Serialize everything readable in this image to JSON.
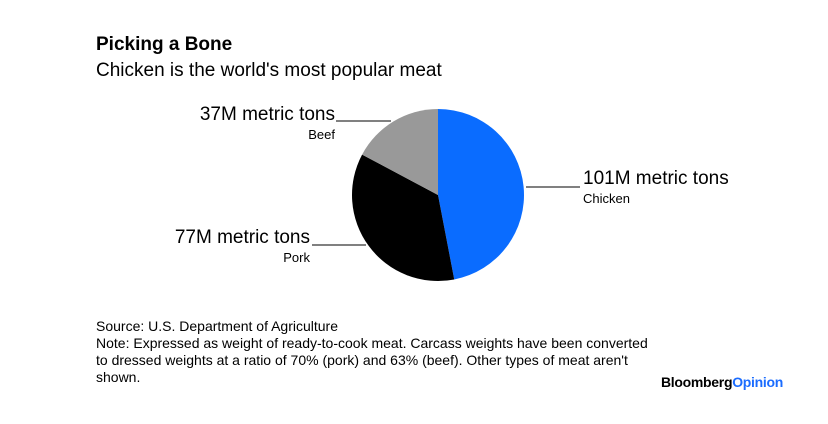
{
  "title": "Picking a Bone",
  "subtitle": "Chicken is the world's most popular meat",
  "chart_data": {
    "type": "pie",
    "title": "Picking a Bone",
    "subtitle": "Chicken is the world's most popular meat",
    "slices": [
      {
        "name": "Chicken",
        "value": 101,
        "value_label": "101M metric tons",
        "color": "#0a6cff"
      },
      {
        "name": "Pork",
        "value": 77,
        "value_label": "77M metric tons",
        "color": "#000000"
      },
      {
        "name": "Beef",
        "value": 37,
        "value_label": "37M metric tons",
        "color": "#999999"
      }
    ],
    "start": "12 o'clock",
    "direction": "clockwise"
  },
  "footer": {
    "source": "Source: U.S. Department of Agriculture",
    "note": "Note: Expressed as weight of ready-to-cook meat. Carcass weights have been converted to dressed weights at a ratio of 70% (pork) and 63% (beef). Other types of meat aren't shown."
  },
  "brand": {
    "part1": "Bloomberg",
    "part2": "Opinion"
  }
}
